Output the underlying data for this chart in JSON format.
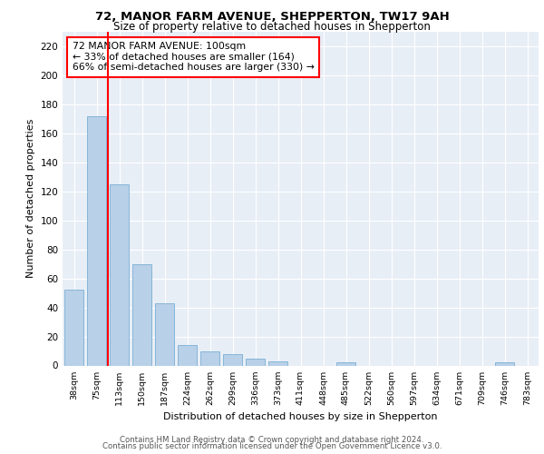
{
  "title1": "72, MANOR FARM AVENUE, SHEPPERTON, TW17 9AH",
  "title2": "Size of property relative to detached houses in Shepperton",
  "xlabel": "Distribution of detached houses by size in Shepperton",
  "ylabel": "Number of detached properties",
  "categories": [
    "38sqm",
    "75sqm",
    "113sqm",
    "150sqm",
    "187sqm",
    "224sqm",
    "262sqm",
    "299sqm",
    "336sqm",
    "373sqm",
    "411sqm",
    "448sqm",
    "485sqm",
    "522sqm",
    "560sqm",
    "597sqm",
    "634sqm",
    "671sqm",
    "709sqm",
    "746sqm",
    "783sqm"
  ],
  "values": [
    52,
    172,
    125,
    70,
    43,
    14,
    10,
    8,
    5,
    3,
    0,
    0,
    2,
    0,
    0,
    0,
    0,
    0,
    0,
    2,
    0
  ],
  "bar_color": "#b8d0e8",
  "bar_edge_color": "#7aafd4",
  "vline_x_index": 1.5,
  "vline_color": "red",
  "annotation_box_text": "72 MANOR FARM AVENUE: 100sqm\n← 33% of detached houses are smaller (164)\n66% of semi-detached houses are larger (330) →",
  "annotation_box_color": "white",
  "annotation_box_edge_color": "red",
  "ylim": [
    0,
    230
  ],
  "yticks": [
    0,
    20,
    40,
    60,
    80,
    100,
    120,
    140,
    160,
    180,
    200,
    220
  ],
  "bg_color": "#e8eef6",
  "footer1": "Contains HM Land Registry data © Crown copyright and database right 2024.",
  "footer2": "Contains public sector information licensed under the Open Government Licence v3.0."
}
